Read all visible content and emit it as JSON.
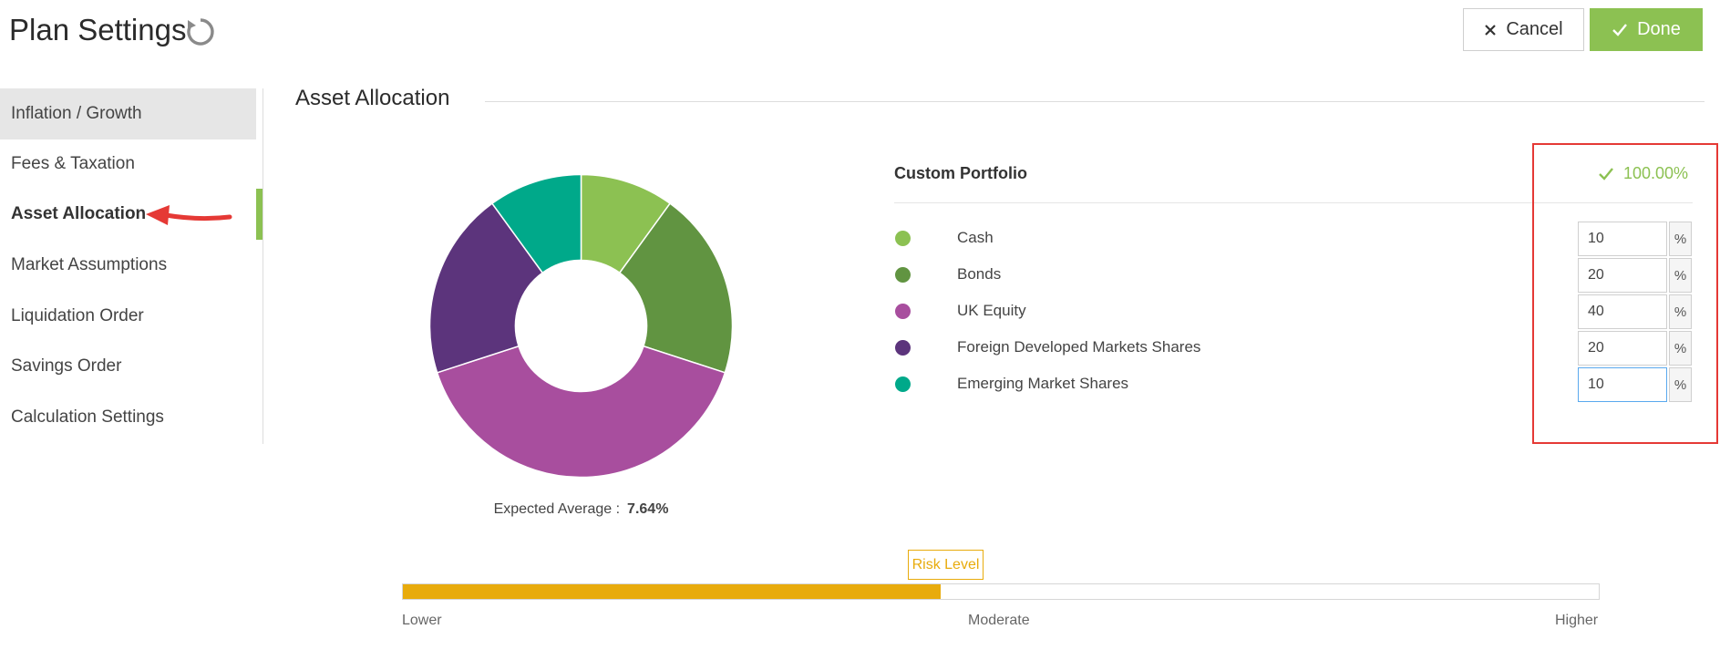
{
  "header": {
    "title": "Plan Settings",
    "reset_icon": "refresh-icon",
    "cancel_label": "Cancel",
    "done_label": "Done",
    "done_color": "#8cc152"
  },
  "sidebar": {
    "items": [
      {
        "label": "Inflation / Growth",
        "name": "sidebar-item-inflation-growth"
      },
      {
        "label": "Fees & Taxation",
        "name": "sidebar-item-fees-taxation"
      },
      {
        "label": "Asset Allocation",
        "name": "sidebar-item-asset-allocation",
        "active": true
      },
      {
        "label": "Market Assumptions",
        "name": "sidebar-item-market-assumptions"
      },
      {
        "label": "Liquidation Order",
        "name": "sidebar-item-liquidation-order"
      },
      {
        "label": "Savings Order",
        "name": "sidebar-item-savings-order"
      },
      {
        "label": "Calculation Settings",
        "name": "sidebar-item-calculation-settings"
      }
    ],
    "active_color": "#8cc152"
  },
  "section": {
    "title": "Asset Allocation"
  },
  "chart": {
    "expected_label": "Expected Average :",
    "expected_value": "7.64%"
  },
  "chart_data": {
    "type": "pie",
    "donut": true,
    "categories": [
      "Cash",
      "Bonds",
      "UK Equity",
      "Foreign Developed Markets Shares",
      "Emerging Market Shares"
    ],
    "values": [
      10,
      20,
      40,
      20,
      10
    ],
    "colors": [
      "#8cc152",
      "#619441",
      "#a84e9e",
      "#5c347c",
      "#00a98a"
    ]
  },
  "portfolio": {
    "title": "Custom Portfolio",
    "total": "100.00%",
    "total_icon": "check-icon",
    "unit": "%",
    "rows": [
      {
        "label": "Cash",
        "value": "10",
        "color": "#8cc152"
      },
      {
        "label": "Bonds",
        "value": "20",
        "color": "#619441"
      },
      {
        "label": "UK Equity",
        "value": "40",
        "color": "#a84e9e"
      },
      {
        "label": "Foreign Developed Markets Shares",
        "value": "20",
        "color": "#5c347c"
      },
      {
        "label": "Emerging Market Shares",
        "value": "10",
        "color": "#00a98a",
        "focused": true
      }
    ]
  },
  "risk": {
    "label": "Risk Level",
    "level": 0.45,
    "lower": "Lower",
    "moderate": "Moderate",
    "higher": "Higher",
    "color": "#e8ab0c"
  }
}
